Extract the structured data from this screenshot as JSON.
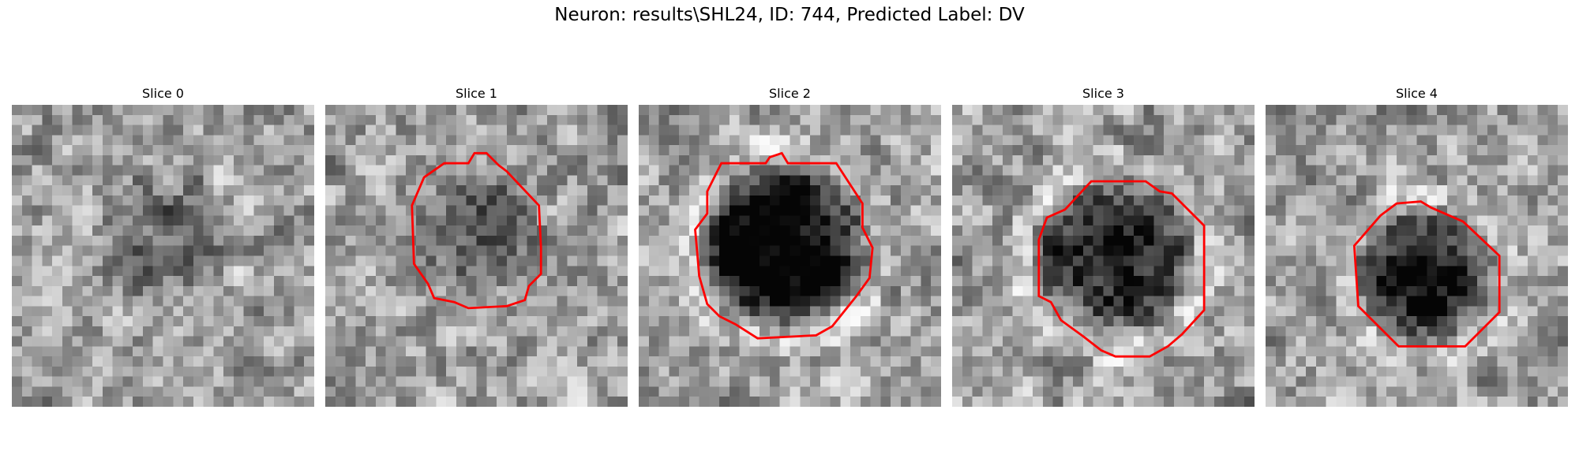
{
  "figure": {
    "title": "Neuron: results\\SHL24, ID: 744, Predicted Label: DV"
  },
  "colormap": "gray",
  "contour_color": "#ff0000",
  "grid_size": 30,
  "panels": [
    {
      "title": "Slice 0",
      "has_contour": false,
      "cell_intensity": "faint",
      "seed": 11
    },
    {
      "title": "Slice 1",
      "has_contour": true,
      "cell_intensity": "medium",
      "seed": 23
    },
    {
      "title": "Slice 2",
      "has_contour": true,
      "cell_intensity": "dark",
      "seed": 37
    },
    {
      "title": "Slice 3",
      "has_contour": true,
      "cell_intensity": "dark",
      "seed": 41
    },
    {
      "title": "Slice 4",
      "has_contour": true,
      "cell_intensity": "dark",
      "seed": 53
    }
  ]
}
